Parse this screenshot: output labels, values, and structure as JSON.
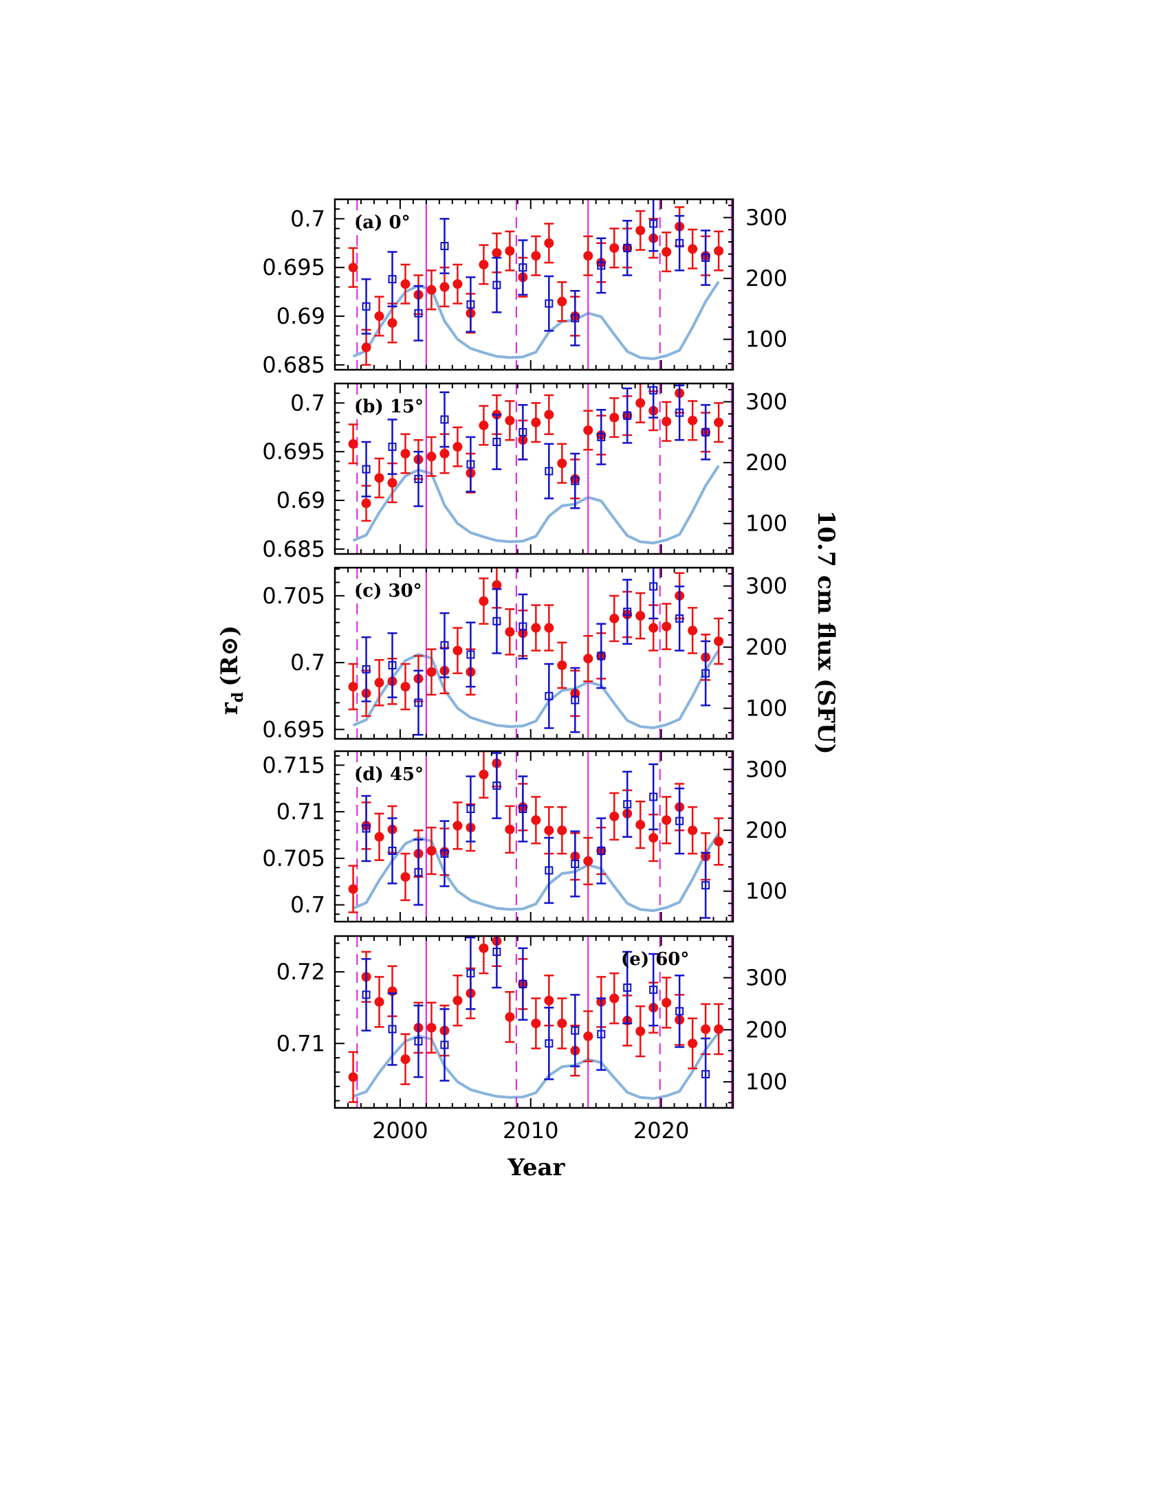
{
  "chart_data": [
    {
      "type": "scatter",
      "panel_label": "(a) 0°",
      "xlim": [
        1995.0,
        2025.5
      ],
      "ylim": [
        0.6845,
        0.702
      ],
      "y_ticks": [
        0.685,
        0.69,
        0.695,
        0.7
      ],
      "y_tick_labels": [
        "0.685",
        "0.69",
        "0.695",
        "0.7"
      ],
      "label_side": "left",
      "series": [
        {
          "marker": "filled-circle",
          "color": "#ee1111",
          "x": [
            1996.4,
            1997.4,
            1998.4,
            1999.4,
            2000.4,
            2001.4,
            2002.4,
            2003.4,
            2004.4,
            2005.4,
            2006.4,
            2007.4,
            2008.4,
            2009.4,
            2010.4,
            2011.4,
            2012.4,
            2013.4,
            2014.4,
            2015.4,
            2016.4,
            2017.4,
            2018.4,
            2019.4,
            2020.4,
            2021.4,
            2022.4,
            2023.4,
            2024.4
          ],
          "y": [
            0.695,
            0.6868,
            0.69,
            0.6893,
            0.6933,
            0.6922,
            0.6927,
            0.693,
            0.6933,
            0.6903,
            0.6953,
            0.6965,
            0.6967,
            0.694,
            0.6962,
            0.6975,
            0.6915,
            0.69,
            0.6962,
            0.6955,
            0.697,
            0.697,
            0.6988,
            0.698,
            0.6966,
            0.6992,
            0.6969,
            0.6962,
            0.6967
          ],
          "err": [
            0.002,
            0.0018,
            0.002,
            0.002,
            0.002,
            0.002,
            0.002,
            0.002,
            0.002,
            0.002,
            0.002,
            0.002,
            0.002,
            0.002,
            0.002,
            0.002,
            0.002,
            0.002,
            0.002,
            0.002,
            0.002,
            0.002,
            0.002,
            0.002,
            0.002,
            0.002,
            0.002,
            0.002,
            0.002
          ]
        },
        {
          "marker": "open-square",
          "color": "#1111cc",
          "x": [
            1997.4,
            1999.4,
            2001.4,
            2003.4,
            2005.4,
            2007.4,
            2009.4,
            2011.4,
            2013.4,
            2015.4,
            2017.4,
            2019.4,
            2021.4,
            2023.4
          ],
          "y": [
            0.691,
            0.6938,
            0.6903,
            0.6972,
            0.6912,
            0.6932,
            0.695,
            0.6913,
            0.6898,
            0.6952,
            0.697,
            0.6995,
            0.6975,
            0.696
          ],
          "err": [
            0.0028,
            0.0028,
            0.0028,
            0.0028,
            0.0028,
            0.0028,
            0.0028,
            0.0028,
            0.0028,
            0.0028,
            0.0028,
            0.0028,
            0.0028,
            0.0028
          ]
        }
      ]
    },
    {
      "type": "scatter",
      "panel_label": "(b) 15°",
      "xlim": [
        1995.0,
        2025.5
      ],
      "ylim": [
        0.6845,
        0.702
      ],
      "y_ticks": [
        0.685,
        0.69,
        0.695,
        0.7
      ],
      "y_tick_labels": [
        "0.685",
        "0.69",
        "0.695",
        "0.7"
      ],
      "label_side": "left",
      "series": [
        {
          "marker": "filled-circle",
          "color": "#ee1111",
          "x": [
            1996.4,
            1997.4,
            1998.4,
            1999.4,
            2000.4,
            2001.4,
            2002.4,
            2003.4,
            2004.4,
            2005.4,
            2006.4,
            2007.4,
            2008.4,
            2009.4,
            2010.4,
            2011.4,
            2012.4,
            2013.4,
            2014.4,
            2015.4,
            2016.4,
            2017.4,
            2018.4,
            2019.4,
            2020.4,
            2021.4,
            2022.4,
            2023.4,
            2024.4
          ],
          "y": [
            0.6958,
            0.6897,
            0.6923,
            0.6918,
            0.6948,
            0.6942,
            0.6945,
            0.6948,
            0.6955,
            0.6928,
            0.6977,
            0.6988,
            0.6982,
            0.6962,
            0.698,
            0.6988,
            0.6938,
            0.6922,
            0.6972,
            0.6967,
            0.6985,
            0.6987,
            0.7,
            0.6992,
            0.6981,
            0.701,
            0.6982,
            0.697,
            0.698
          ],
          "err": [
            0.002,
            0.0018,
            0.002,
            0.002,
            0.002,
            0.002,
            0.002,
            0.002,
            0.002,
            0.002,
            0.002,
            0.002,
            0.002,
            0.002,
            0.002,
            0.002,
            0.002,
            0.002,
            0.002,
            0.002,
            0.002,
            0.002,
            0.002,
            0.002,
            0.002,
            0.002,
            0.002,
            0.002,
            0.002
          ]
        },
        {
          "marker": "open-square",
          "color": "#1111cc",
          "x": [
            1997.4,
            1999.4,
            2001.4,
            2003.4,
            2005.4,
            2007.4,
            2009.4,
            2011.4,
            2013.4,
            2015.4,
            2017.4,
            2019.4,
            2021.4,
            2023.4
          ],
          "y": [
            0.6932,
            0.6955,
            0.6922,
            0.6983,
            0.6937,
            0.696,
            0.697,
            0.693,
            0.692,
            0.6965,
            0.6987,
            0.7013,
            0.699,
            0.697
          ],
          "err": [
            0.0028,
            0.0028,
            0.0028,
            0.0028,
            0.0028,
            0.0028,
            0.0028,
            0.0028,
            0.0028,
            0.0028,
            0.0028,
            0.0028,
            0.0028,
            0.0028
          ]
        }
      ]
    },
    {
      "type": "scatter",
      "panel_label": "(c) 30°",
      "xlim": [
        1995.0,
        2025.5
      ],
      "ylim": [
        0.6943,
        0.7071
      ],
      "y_ticks": [
        0.695,
        0.7,
        0.705
      ],
      "y_tick_labels": [
        "0.695",
        "0.7",
        "0.705"
      ],
      "label_side": "left",
      "series": [
        {
          "marker": "filled-circle",
          "color": "#ee1111",
          "x": [
            1996.4,
            1997.4,
            1998.4,
            1999.4,
            2000.4,
            2001.4,
            2002.4,
            2003.4,
            2004.4,
            2005.4,
            2006.4,
            2007.4,
            2008.4,
            2009.4,
            2010.4,
            2011.4,
            2012.4,
            2013.4,
            2014.4,
            2015.4,
            2016.4,
            2017.4,
            2018.4,
            2019.4,
            2020.4,
            2021.4,
            2022.4,
            2023.4,
            2024.4
          ],
          "y": [
            0.6982,
            0.6977,
            0.6985,
            0.6986,
            0.6982,
            0.6988,
            0.6993,
            0.6994,
            0.7009,
            0.6993,
            0.7046,
            0.7058,
            0.7023,
            0.7022,
            0.7026,
            0.7026,
            0.6998,
            0.6977,
            0.7003,
            0.7005,
            0.7033,
            0.7036,
            0.7035,
            0.7026,
            0.7027,
            0.705,
            0.7024,
            0.7004,
            0.7016
          ],
          "err": [
            0.0017,
            0.0017,
            0.0017,
            0.0017,
            0.0017,
            0.0017,
            0.0017,
            0.0017,
            0.0017,
            0.0017,
            0.0017,
            0.0017,
            0.0017,
            0.0017,
            0.0017,
            0.0017,
            0.0017,
            0.0017,
            0.0017,
            0.0017,
            0.0017,
            0.0017,
            0.0017,
            0.0017,
            0.0017,
            0.0017,
            0.0017,
            0.0017,
            0.0017
          ]
        },
        {
          "marker": "open-square",
          "color": "#1111cc",
          "x": [
            1997.4,
            1999.4,
            2001.4,
            2003.4,
            2005.4,
            2007.4,
            2009.4,
            2011.4,
            2013.4,
            2015.4,
            2017.4,
            2019.4,
            2021.4,
            2023.4
          ],
          "y": [
            0.6995,
            0.6998,
            0.697,
            0.7013,
            0.7006,
            0.7031,
            0.7027,
            0.6975,
            0.6972,
            0.7005,
            0.7038,
            0.7057,
            0.7033,
            0.6992
          ],
          "err": [
            0.0024,
            0.0024,
            0.0024,
            0.0024,
            0.0024,
            0.0024,
            0.0024,
            0.0024,
            0.0024,
            0.0024,
            0.0024,
            0.0024,
            0.0024,
            0.0024
          ]
        }
      ]
    },
    {
      "type": "scatter",
      "panel_label": "(d) 45°",
      "xlim": [
        1995.0,
        2025.5
      ],
      "ylim": [
        0.6982,
        0.7165
      ],
      "y_ticks": [
        0.7,
        0.705,
        0.71,
        0.715
      ],
      "y_tick_labels": [
        "0.7",
        "0.705",
        "0.71",
        "0.715"
      ],
      "label_side": "left",
      "series": [
        {
          "marker": "filled-circle",
          "color": "#ee1111",
          "x": [
            1996.4,
            1997.4,
            1998.4,
            1999.4,
            2000.4,
            2001.4,
            2002.4,
            2003.4,
            2004.4,
            2005.4,
            2006.4,
            2007.4,
            2008.4,
            2009.4,
            2010.4,
            2011.4,
            2012.4,
            2013.4,
            2014.4,
            2015.4,
            2016.4,
            2017.4,
            2018.4,
            2019.4,
            2020.4,
            2021.4,
            2022.4,
            2023.4,
            2024.4
          ],
          "y": [
            0.7017,
            0.7085,
            0.7073,
            0.7081,
            0.703,
            0.7055,
            0.7058,
            0.7057,
            0.7085,
            0.7083,
            0.714,
            0.7152,
            0.7081,
            0.7105,
            0.7091,
            0.708,
            0.708,
            0.7052,
            0.7047,
            0.7058,
            0.7095,
            0.7098,
            0.7086,
            0.7072,
            0.7091,
            0.7105,
            0.708,
            0.7052,
            0.7068
          ],
          "err": [
            0.0025,
            0.0025,
            0.0025,
            0.0025,
            0.0025,
            0.0025,
            0.0025,
            0.0025,
            0.0025,
            0.0025,
            0.0025,
            0.0025,
            0.0025,
            0.0025,
            0.0025,
            0.0025,
            0.0025,
            0.0025,
            0.0025,
            0.0025,
            0.0025,
            0.0025,
            0.0025,
            0.0025,
            0.0025,
            0.0025,
            0.0025,
            0.0025,
            0.0025
          ]
        },
        {
          "marker": "open-square",
          "color": "#1111cc",
          "x": [
            1997.4,
            1999.4,
            2001.4,
            2003.4,
            2005.4,
            2007.4,
            2009.4,
            2011.4,
            2013.4,
            2015.4,
            2017.4,
            2019.4,
            2021.4,
            2023.4
          ],
          "y": [
            0.7082,
            0.7058,
            0.7035,
            0.7055,
            0.7103,
            0.7128,
            0.7103,
            0.7037,
            0.7044,
            0.7058,
            0.7108,
            0.7116,
            0.709,
            0.7021
          ],
          "err": [
            0.0035,
            0.0035,
            0.0035,
            0.0035,
            0.0035,
            0.0035,
            0.0035,
            0.0035,
            0.0035,
            0.0035,
            0.0035,
            0.0035,
            0.0035,
            0.0035
          ]
        }
      ]
    },
    {
      "type": "scatter",
      "panel_label": "(e) 60°",
      "xlim": [
        1995.0,
        2025.5
      ],
      "ylim": [
        0.701,
        0.725
      ],
      "y_ticks": [
        0.71,
        0.72
      ],
      "y_tick_labels": [
        "0.71",
        "0.72"
      ],
      "label_side": "right",
      "series": [
        {
          "marker": "filled-circle",
          "color": "#ee1111",
          "x": [
            1996.4,
            1997.4,
            1998.4,
            1999.4,
            2000.4,
            2001.4,
            2002.4,
            2003.4,
            2004.4,
            2005.4,
            2006.4,
            2007.4,
            2008.4,
            2009.4,
            2010.4,
            2011.4,
            2012.4,
            2013.4,
            2014.4,
            2015.4,
            2016.4,
            2017.4,
            2018.4,
            2019.4,
            2020.4,
            2021.4,
            2022.4,
            2023.4,
            2024.4
          ],
          "y": [
            0.7053,
            0.7193,
            0.7158,
            0.7173,
            0.7078,
            0.7122,
            0.7122,
            0.7118,
            0.716,
            0.717,
            0.7233,
            0.7243,
            0.7137,
            0.7183,
            0.7128,
            0.716,
            0.7128,
            0.709,
            0.711,
            0.7158,
            0.7163,
            0.7132,
            0.7117,
            0.715,
            0.7157,
            0.7133,
            0.71,
            0.712,
            0.712
          ],
          "err": [
            0.0035,
            0.0035,
            0.0035,
            0.0035,
            0.0035,
            0.0035,
            0.0035,
            0.0035,
            0.0035,
            0.0035,
            0.0035,
            0.0035,
            0.0035,
            0.0035,
            0.0035,
            0.0035,
            0.0035,
            0.0035,
            0.0035,
            0.0035,
            0.0035,
            0.0035,
            0.0035,
            0.0035,
            0.0035,
            0.0035,
            0.0035,
            0.0035,
            0.0035
          ]
        },
        {
          "marker": "open-square",
          "color": "#1111cc",
          "x": [
            1997.4,
            1999.4,
            2001.4,
            2003.4,
            2005.4,
            2007.4,
            2009.4,
            2011.4,
            2013.4,
            2015.4,
            2017.4,
            2019.4,
            2021.4,
            2023.4
          ],
          "y": [
            0.7168,
            0.712,
            0.7103,
            0.7098,
            0.7198,
            0.7228,
            0.7183,
            0.71,
            0.7118,
            0.7113,
            0.7178,
            0.7175,
            0.7145,
            0.7057
          ],
          "err": [
            0.005,
            0.005,
            0.005,
            0.005,
            0.005,
            0.005,
            0.005,
            0.005,
            0.005,
            0.005,
            0.005,
            0.005,
            0.005,
            0.005
          ]
        }
      ]
    }
  ],
  "flux": {
    "color": "#88b4dd",
    "years": [
      1996.4,
      1997.4,
      1998.4,
      1999.4,
      2000.4,
      2001.4,
      2002.4,
      2003.4,
      2004.4,
      2005.4,
      2006.4,
      2007.4,
      2008.4,
      2009.4,
      2010.4,
      2011.4,
      2012.4,
      2013.4,
      2014.4,
      2015.4,
      2016.4,
      2017.4,
      2018.4,
      2019.4,
      2020.4,
      2021.4,
      2022.4,
      2023.4,
      2024.4
    ],
    "values": [
      72,
      81,
      118,
      150,
      178,
      188,
      182,
      130,
      100,
      85,
      78,
      72,
      70,
      71,
      79,
      112,
      129,
      132,
      143,
      137,
      108,
      80,
      70,
      68,
      73,
      82,
      120,
      162,
      195
    ],
    "panel_ylims": [
      [
        50,
        330
      ],
      [
        50,
        330
      ],
      [
        50,
        330
      ],
      [
        50,
        330
      ],
      [
        50,
        380
      ]
    ],
    "ticks": [
      [
        100,
        200,
        300
      ],
      [
        100,
        200,
        300
      ],
      [
        100,
        200,
        300
      ],
      [
        100,
        200,
        300
      ],
      [
        100,
        200,
        300
      ]
    ]
  },
  "vlines": {
    "solid": [
      2002.0,
      2014.4,
      2025.4
    ],
    "dashed": [
      1996.7,
      2008.9,
      2019.9
    ],
    "color": "#e020e0"
  },
  "x_ticks": [
    2000,
    2010,
    2020
  ],
  "x_tick_labels": [
    "2000",
    "2010",
    "2020"
  ],
  "xlabel": "Year",
  "ylabel_left": "r",
  "ylabel_left_sub": "d",
  "ylabel_left_unit": "(R",
  "ylabel_left_unit_close": ")",
  "ylabel_right": "10.7 cm flux (SFU)"
}
